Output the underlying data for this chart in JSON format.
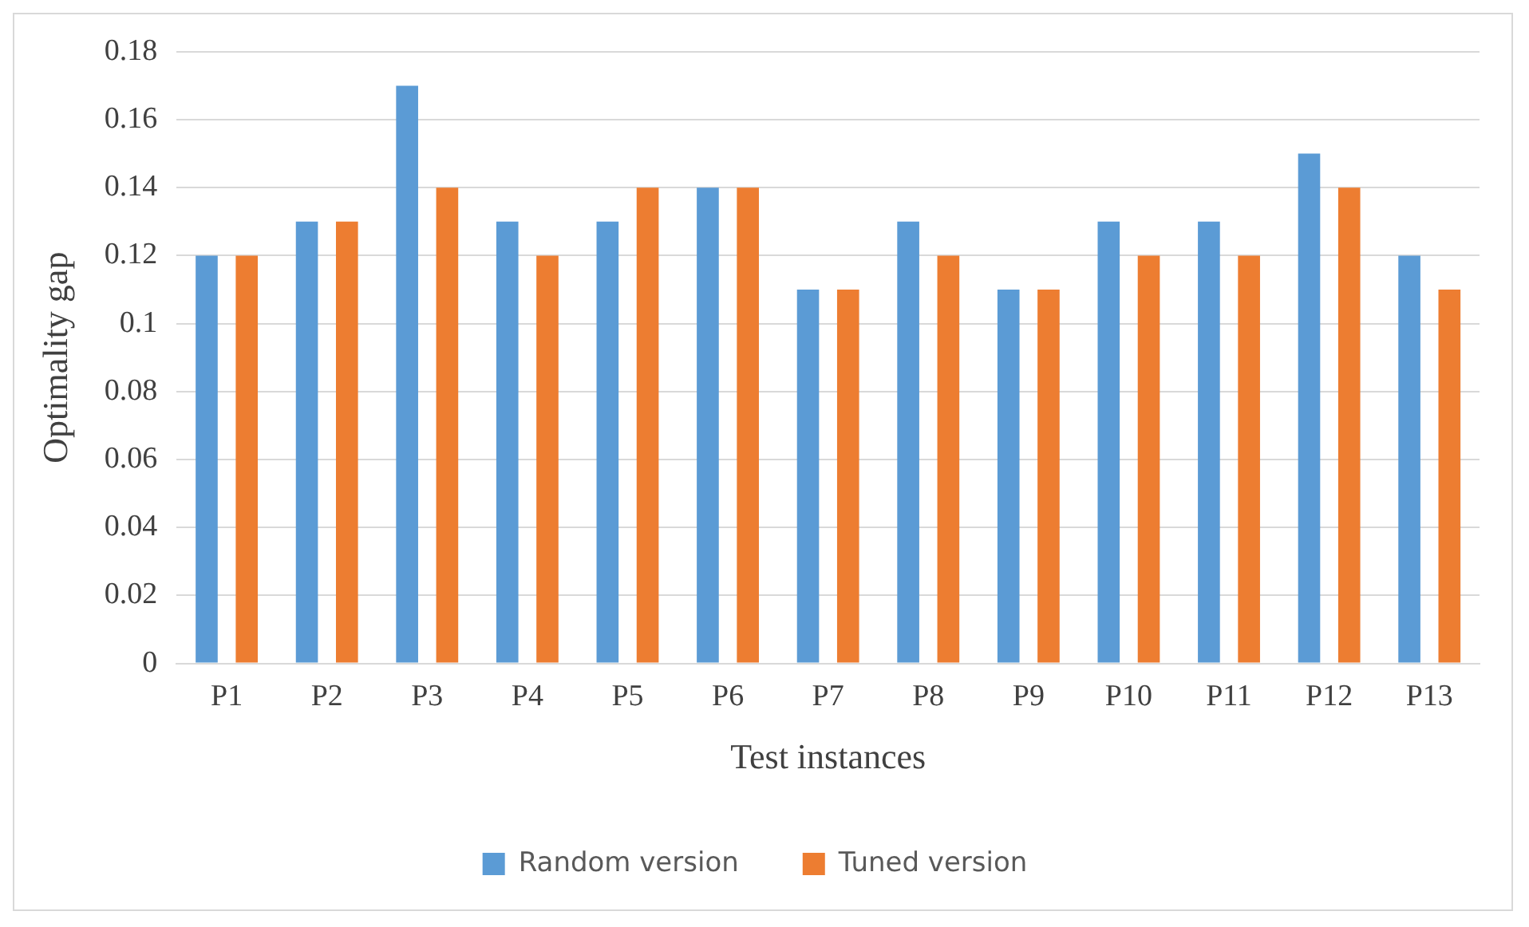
{
  "chart_data": {
    "type": "bar",
    "xlabel": "Test instances",
    "ylabel": "Optimality gap",
    "categories": [
      "P1",
      "P2",
      "P3",
      "P4",
      "P5",
      "P6",
      "P7",
      "P8",
      "P9",
      "P10",
      "P11",
      "P12",
      "P13"
    ],
    "series": [
      {
        "name": "Random version",
        "color": "#5b9bd5",
        "values": [
          0.12,
          0.13,
          0.17,
          0.13,
          0.13,
          0.14,
          0.11,
          0.13,
          0.11,
          0.13,
          0.13,
          0.15,
          0.12
        ]
      },
      {
        "name": "Tuned version",
        "color": "#ed7d31",
        "values": [
          0.12,
          0.13,
          0.14,
          0.12,
          0.14,
          0.14,
          0.11,
          0.12,
          0.11,
          0.12,
          0.12,
          0.14,
          0.11
        ]
      }
    ],
    "ylim": [
      0,
      0.18
    ],
    "yticks": [
      0,
      0.02,
      0.04,
      0.06,
      0.08,
      0.1,
      0.12,
      0.14,
      0.16,
      0.18
    ],
    "grid": "y",
    "legend": "bottom"
  }
}
